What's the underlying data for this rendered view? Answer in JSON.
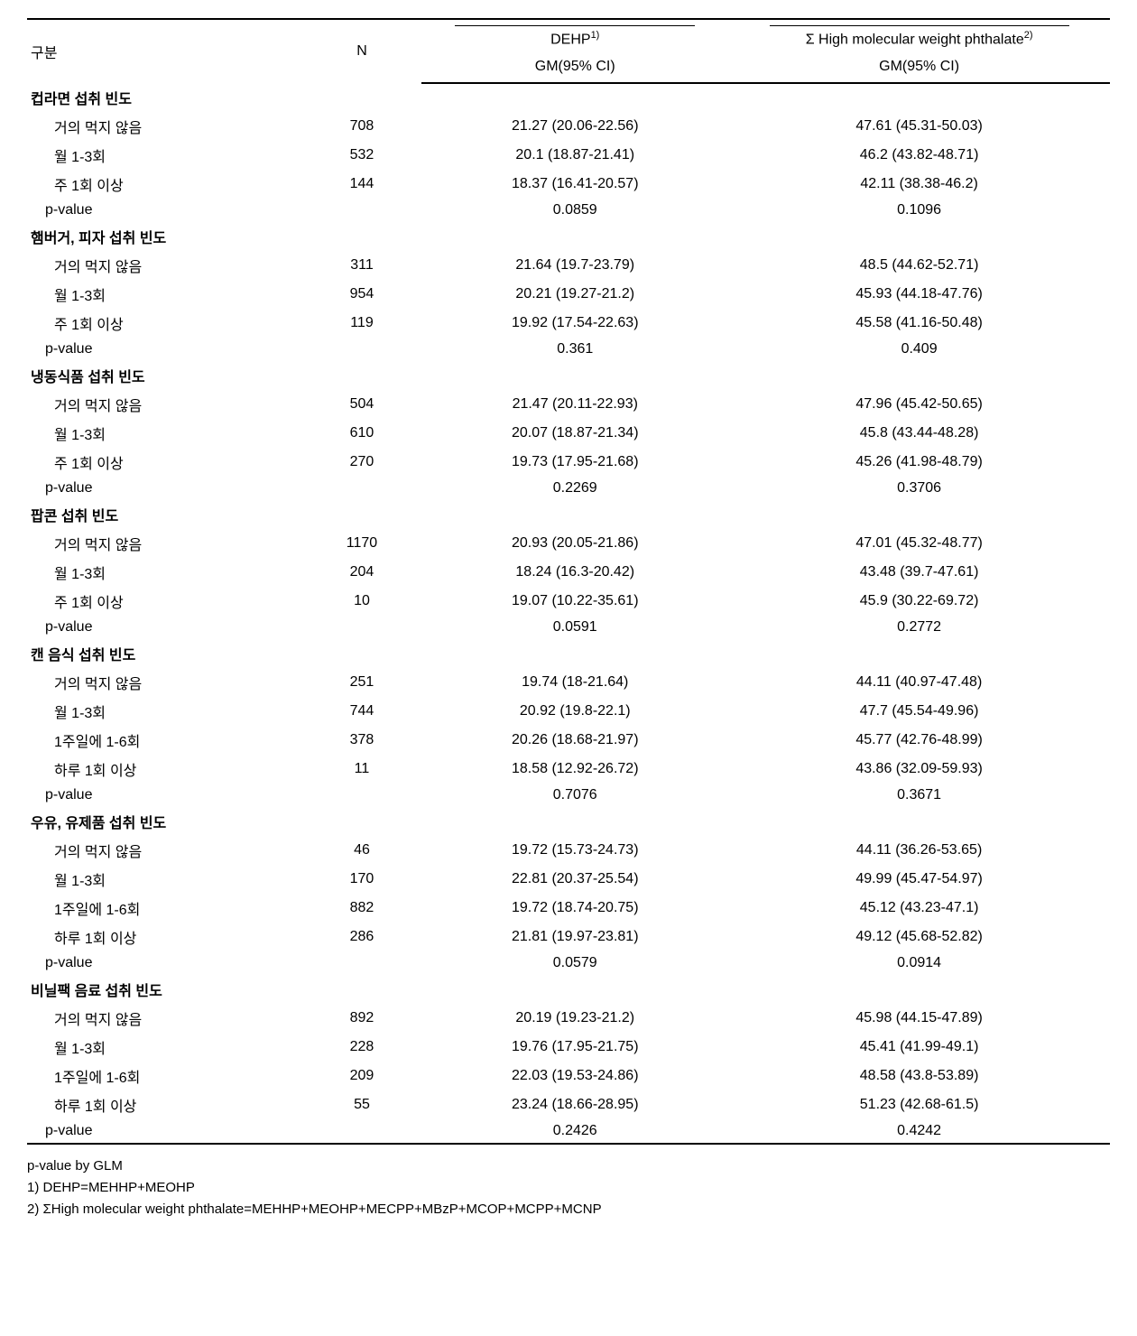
{
  "header": {
    "col1": "구분",
    "col2": "N",
    "col3_main": "DEHP",
    "col3_sup": "1)",
    "col4_main": "Σ High molecular weight phthalate",
    "col4_sup": "2)",
    "sub_gm": "GM(95% CI)"
  },
  "sections": [
    {
      "label": "컵라면 섭취 빈도",
      "rows": [
        {
          "label": "거의 먹지 않음",
          "n": "708",
          "dehp": "21.27 (20.06-22.56)",
          "high": "47.61 (45.31-50.03)"
        },
        {
          "label": "월 1-3회",
          "n": "532",
          "dehp": "20.1 (18.87-21.41)",
          "high": "46.2 (43.82-48.71)"
        },
        {
          "label": "주 1회 이상",
          "n": "144",
          "dehp": "18.37 (16.41-20.57)",
          "high": "42.11 (38.38-46.2)"
        }
      ],
      "pvalue": {
        "label": "p-value",
        "dehp": "0.0859",
        "high": "0.1096"
      }
    },
    {
      "label": "햄버거, 피자 섭취 빈도",
      "rows": [
        {
          "label": "거의 먹지 않음",
          "n": "311",
          "dehp": "21.64 (19.7-23.79)",
          "high": "48.5 (44.62-52.71)"
        },
        {
          "label": "월 1-3회",
          "n": "954",
          "dehp": "20.21 (19.27-21.2)",
          "high": "45.93 (44.18-47.76)"
        },
        {
          "label": "주 1회 이상",
          "n": "119",
          "dehp": "19.92 (17.54-22.63)",
          "high": "45.58 (41.16-50.48)"
        }
      ],
      "pvalue": {
        "label": "p-value",
        "dehp": "0.361",
        "high": "0.409"
      }
    },
    {
      "label": "냉동식품 섭취 빈도",
      "rows": [
        {
          "label": "거의 먹지 않음",
          "n": "504",
          "dehp": "21.47 (20.11-22.93)",
          "high": "47.96 (45.42-50.65)"
        },
        {
          "label": "월 1-3회",
          "n": "610",
          "dehp": "20.07 (18.87-21.34)",
          "high": "45.8 (43.44-48.28)"
        },
        {
          "label": "주 1회 이상",
          "n": "270",
          "dehp": "19.73 (17.95-21.68)",
          "high": "45.26 (41.98-48.79)"
        }
      ],
      "pvalue": {
        "label": "p-value",
        "dehp": "0.2269",
        "high": "0.3706"
      }
    },
    {
      "label": "팝콘 섭취 빈도",
      "rows": [
        {
          "label": "거의 먹지 않음",
          "n": "1170",
          "dehp": "20.93 (20.05-21.86)",
          "high": "47.01 (45.32-48.77)"
        },
        {
          "label": "월 1-3회",
          "n": "204",
          "dehp": "18.24 (16.3-20.42)",
          "high": "43.48 (39.7-47.61)"
        },
        {
          "label": "주 1회 이상",
          "n": "10",
          "dehp": "19.07 (10.22-35.61)",
          "high": "45.9 (30.22-69.72)"
        }
      ],
      "pvalue": {
        "label": "p-value",
        "dehp": "0.0591",
        "high": "0.2772"
      }
    },
    {
      "label": "캔 음식 섭취 빈도",
      "rows": [
        {
          "label": "거의 먹지 않음",
          "n": "251",
          "dehp": "19.74 (18-21.64)",
          "high": "44.11 (40.97-47.48)"
        },
        {
          "label": "월 1-3회",
          "n": "744",
          "dehp": "20.92 (19.8-22.1)",
          "high": "47.7 (45.54-49.96)"
        },
        {
          "label": "1주일에 1-6회",
          "n": "378",
          "dehp": "20.26 (18.68-21.97)",
          "high": "45.77 (42.76-48.99)"
        },
        {
          "label": "하루 1회 이상",
          "n": "11",
          "dehp": "18.58 (12.92-26.72)",
          "high": "43.86 (32.09-59.93)"
        }
      ],
      "pvalue": {
        "label": "p-value",
        "dehp": "0.7076",
        "high": "0.3671"
      }
    },
    {
      "label": "우유, 유제품 섭취 빈도",
      "rows": [
        {
          "label": "거의 먹지 않음",
          "n": "46",
          "dehp": "19.72 (15.73-24.73)",
          "high": "44.11 (36.26-53.65)"
        },
        {
          "label": "월 1-3회",
          "n": "170",
          "dehp": "22.81 (20.37-25.54)",
          "high": "49.99 (45.47-54.97)"
        },
        {
          "label": "1주일에 1-6회",
          "n": "882",
          "dehp": "19.72 (18.74-20.75)",
          "high": "45.12 (43.23-47.1)"
        },
        {
          "label": "하루 1회 이상",
          "n": "286",
          "dehp": "21.81 (19.97-23.81)",
          "high": "49.12 (45.68-52.82)"
        }
      ],
      "pvalue": {
        "label": "p-value",
        "dehp": "0.0579",
        "high": "0.0914"
      }
    },
    {
      "label": "비닐팩 음료 섭취 빈도",
      "rows": [
        {
          "label": "거의 먹지 않음",
          "n": "892",
          "dehp": "20.19 (19.23-21.2)",
          "high": "45.98 (44.15-47.89)"
        },
        {
          "label": "월 1-3회",
          "n": "228",
          "dehp": "19.76 (17.95-21.75)",
          "high": "45.41 (41.99-49.1)"
        },
        {
          "label": "1주일에 1-6회",
          "n": "209",
          "dehp": "22.03 (19.53-24.86)",
          "high": "48.58 (43.8-53.89)"
        },
        {
          "label": "하루 1회 이상",
          "n": "55",
          "dehp": "23.24 (18.66-28.95)",
          "high": "51.23 (42.68-61.5)"
        }
      ],
      "pvalue": {
        "label": "p-value",
        "dehp": "0.2426",
        "high": "0.4242"
      }
    }
  ],
  "footnotes": {
    "f1": "p-value by GLM",
    "f2": "1) DEHP=MEHHP+MEOHP",
    "f3": "2) ΣHigh molecular weight phthalate=MEHHP+MEOHP+MECPP+MBzP+MCOP+MCPP+MCNP"
  }
}
